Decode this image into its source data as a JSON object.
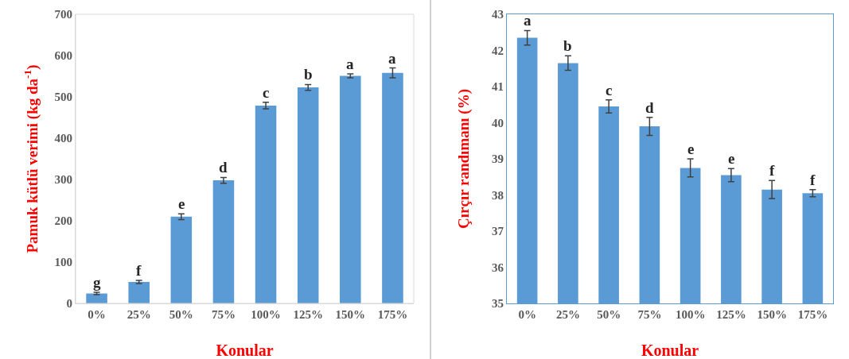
{
  "chart_data": [
    {
      "type": "bar",
      "xlabel": "Konular",
      "ylabel": "Pamuk kütlü verimi (kg da$^{-1}$)",
      "categories": [
        "0%",
        "25%",
        "50%",
        "75%",
        "100%",
        "125%",
        "150%",
        "175%"
      ],
      "color": "#5b9bd5",
      "values": [
        24,
        52,
        210,
        298,
        479,
        523,
        551,
        558
      ],
      "errors": [
        3,
        4,
        7,
        7,
        8,
        7,
        5,
        12
      ],
      "ylim": [
        0,
        700
      ],
      "yticks": [
        0,
        100,
        200,
        300,
        400,
        500,
        600,
        700
      ],
      "grid": false,
      "annotations": [
        {
          "text": "g",
          "x": "0%",
          "y": 27
        },
        {
          "text": "f",
          "x": "25%",
          "y": 56
        },
        {
          "text": "e",
          "x": "50%",
          "y": 217
        },
        {
          "text": "d",
          "x": "75%",
          "y": 305
        },
        {
          "text": "c",
          "x": "100%",
          "y": 487
        },
        {
          "text": "b",
          "x": "125%",
          "y": 530
        },
        {
          "text": "a",
          "x": "150%",
          "y": 556
        },
        {
          "text": "a",
          "x": "175%",
          "y": 570
        }
      ]
    },
    {
      "type": "bar",
      "xlabel": "Konular",
      "ylabel": "Çırçır randımanı (%)",
      "categories": [
        "0%",
        "25%",
        "50%",
        "75%",
        "100%",
        "125%",
        "150%",
        "175%"
      ],
      "color": "#5b9bd5",
      "values": [
        42.35,
        41.65,
        40.45,
        39.9,
        38.75,
        38.55,
        38.15,
        38.05
      ],
      "errors": [
        0.2,
        0.2,
        0.18,
        0.25,
        0.25,
        0.18,
        0.25,
        0.1
      ],
      "ylim": [
        35,
        43
      ],
      "yticks": [
        35,
        36,
        37,
        38,
        39,
        40,
        41,
        42,
        43
      ],
      "grid": false,
      "annotations": [
        {
          "text": "a",
          "x": "0%",
          "y": 42.55
        },
        {
          "text": "b",
          "x": "25%",
          "y": 41.85
        },
        {
          "text": "c",
          "x": "50%",
          "y": 40.63
        },
        {
          "text": "d",
          "x": "75%",
          "y": 40.15
        },
        {
          "text": "e",
          "x": "100%",
          "y": 39.0
        },
        {
          "text": "e",
          "x": "125%",
          "y": 38.73
        },
        {
          "text": "f",
          "x": "150%",
          "y": 38.4
        },
        {
          "text": "f",
          "x": "175%",
          "y": 38.15
        }
      ]
    }
  ]
}
